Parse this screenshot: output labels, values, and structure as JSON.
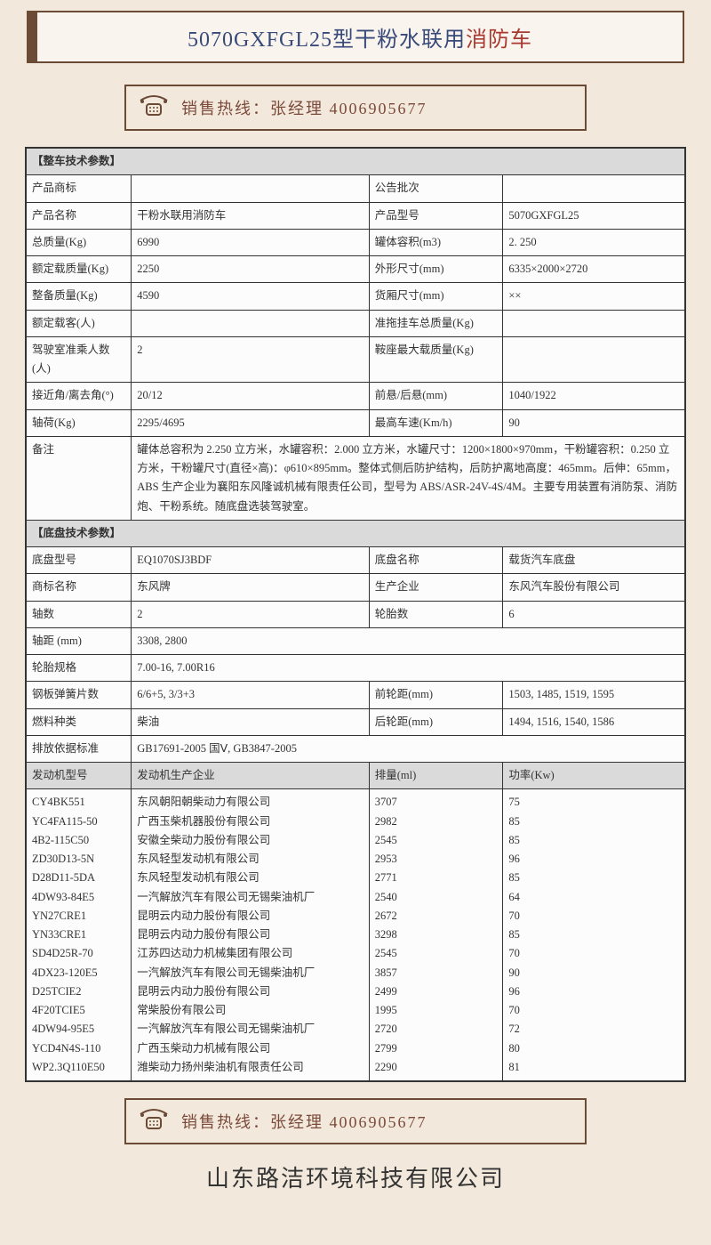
{
  "title": {
    "text_blue": "5070GXFGL25型干粉水联用",
    "text_red": "消防车"
  },
  "hotline": "销售热线：张经理 4006905677",
  "vehicle_section_title": "【整车技术参数】",
  "chassis_section_title": "【底盘技术参数】",
  "vehicle_rows": [
    [
      "产品商标",
      "",
      "公告批次",
      ""
    ],
    [
      "产品名称",
      "干粉水联用消防车",
      "产品型号",
      "5070GXFGL25"
    ],
    [
      "总质量(Kg)",
      "6990",
      "罐体容积(m3)",
      "2. 250"
    ],
    [
      "额定载质量(Kg)",
      "2250",
      "外形尺寸(mm)",
      "6335×2000×2720"
    ],
    [
      "整备质量(Kg)",
      "4590",
      "货厢尺寸(mm)",
      "××"
    ],
    [
      "额定载客(人)",
      "",
      "准拖挂车总质量(Kg)",
      ""
    ],
    [
      "驾驶室准乘人数(人)",
      "2",
      "鞍座最大载质量(Kg)",
      ""
    ],
    [
      "接近角/离去角(°)",
      "20/12",
      "前悬/后悬(mm)",
      "1040/1922"
    ],
    [
      "轴荷(Kg)",
      "2295/4695",
      "最高车速(Km/h)",
      "90"
    ]
  ],
  "remark_label": "备注",
  "remark_text": "罐体总容积为 2.250 立方米，水罐容积：2.000 立方米，水罐尺寸：1200×1800×970mm，干粉罐容积：0.250 立方米，干粉罐尺寸(直径×高)：φ610×895mm。整体式侧后防护结构，后防护离地高度：465mm。后伸：65mm，ABS 生产企业为襄阳东风隆诚机械有限责任公司，型号为 ABS/ASR-24V-4S/4M。主要专用装置有消防泵、消防炮、干粉系统。随底盘选装驾驶室。",
  "chassis_rows1": [
    [
      "底盘型号",
      "EQ1070SJ3BDF",
      "底盘名称",
      "载货汽车底盘"
    ],
    [
      "商标名称",
      "东风牌",
      "生产企业",
      "东风汽车股份有限公司"
    ],
    [
      "轴数",
      "2",
      "轮胎数",
      "6"
    ]
  ],
  "chassis_rows2": [
    [
      "轴距 (mm)",
      "3308, 2800"
    ],
    [
      "轮胎规格",
      "7.00-16, 7.00R16"
    ]
  ],
  "chassis_rows3": [
    [
      "钢板弹簧片数",
      "6/6+5, 3/3+3",
      "前轮距(mm)",
      "1503, 1485, 1519, 1595"
    ],
    [
      "燃料种类",
      "柴油",
      "后轮距(mm)",
      "1494, 1516, 1540, 1586"
    ]
  ],
  "emission_row": [
    "排放依据标准",
    "GB17691-2005 国Ⅴ, GB3847-2005"
  ],
  "engine_header": [
    "发动机型号",
    "发动机生产企业",
    "排量(ml)",
    "功率(Kw)"
  ],
  "engine_models": "CY4BK551\nYC4FA115-50\n4B2-115C50\nZD30D13-5N\nD28D11-5DA\n4DW93-84E5\nYN27CRE1\nYN33CRE1\nSD4D25R-70\n4DX23-120E5\nD25TCIE2\n4F20TCIE5\n4DW94-95E5\nYCD4N4S-110\nWP2.3Q110E50",
  "engine_mfrs": "东风朝阳朝柴动力有限公司\n广西玉柴机器股份有限公司\n安徽全柴动力股份有限公司\n东风轻型发动机有限公司\n东风轻型发动机有限公司\n一汽解放汽车有限公司无锡柴油机厂\n昆明云内动力股份有限公司\n昆明云内动力股份有限公司\n江苏四达动力机械集团有限公司\n一汽解放汽车有限公司无锡柴油机厂\n昆明云内动力股份有限公司\n常柴股份有限公司\n一汽解放汽车有限公司无锡柴油机厂\n广西玉柴动力机械有限公司\n潍柴动力扬州柴油机有限责任公司",
  "engine_disp": "3707\n2982\n2545\n2953\n2771\n2540\n2672\n3298\n2545\n3857\n2499\n1995\n2720\n2799\n2290",
  "engine_power": "75\n85\n85\n96\n85\n64\n70\n85\n70\n90\n96\n70\n72\n80\n81",
  "footer_company": "山东路洁环境科技有限公司"
}
